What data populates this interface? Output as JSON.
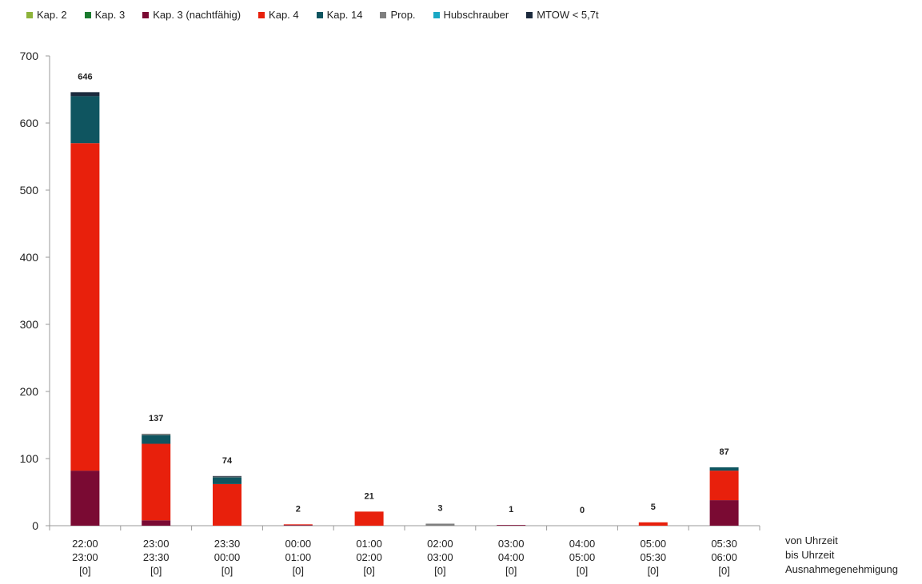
{
  "chart_data": {
    "type": "bar",
    "stacked": true,
    "title": "",
    "ylim": [
      0,
      700
    ],
    "yticks": [
      0,
      100,
      200,
      300,
      400,
      500,
      600,
      700
    ],
    "legend_placement": "top",
    "grid": false,
    "categories": [
      {
        "from": "22:00",
        "to": "23:00",
        "exception": "[0]"
      },
      {
        "from": "23:00",
        "to": "23:30",
        "exception": "[0]"
      },
      {
        "from": "23:30",
        "to": "00:00",
        "exception": "[0]"
      },
      {
        "from": "00:00",
        "to": "01:00",
        "exception": "[0]"
      },
      {
        "from": "01:00",
        "to": "02:00",
        "exception": "[0]"
      },
      {
        "from": "02:00",
        "to": "03:00",
        "exception": "[0]"
      },
      {
        "from": "03:00",
        "to": "04:00",
        "exception": "[0]"
      },
      {
        "from": "04:00",
        "to": "05:00",
        "exception": "[0]"
      },
      {
        "from": "05:00",
        "to": "05:30",
        "exception": "[0]"
      },
      {
        "from": "05:30",
        "to": "06:00",
        "exception": "[0]"
      }
    ],
    "totals": [
      "646",
      "137",
      "74",
      "2",
      "21",
      "3",
      "1",
      "0",
      "5",
      "87"
    ],
    "series": [
      {
        "name": "Kap. 2",
        "color": "#8db33a",
        "values": [
          0,
          0,
          0,
          0,
          0,
          0,
          0,
          0,
          0,
          0
        ]
      },
      {
        "name": "Kap. 3",
        "color": "#1a7a2e",
        "values": [
          0,
          0,
          0,
          0,
          0,
          0,
          0,
          0,
          0,
          0
        ]
      },
      {
        "name": "Kap. 3 (nachtfähig)",
        "color": "#7a0a33",
        "values": [
          82,
          8,
          0,
          1,
          0,
          0,
          1,
          0,
          0,
          38
        ]
      },
      {
        "name": "Kap. 4",
        "color": "#e8200c",
        "values": [
          488,
          114,
          62,
          1,
          21,
          0,
          0,
          0,
          5,
          44
        ]
      },
      {
        "name": "Kap. 14",
        "color": "#0f5560",
        "values": [
          70,
          13,
          10,
          0,
          0,
          0,
          0,
          0,
          0,
          5
        ]
      },
      {
        "name": "Prop.",
        "color": "#7f7f7f",
        "values": [
          0,
          2,
          1,
          0,
          0,
          3,
          0,
          0,
          0,
          0
        ]
      },
      {
        "name": "Hubschrauber",
        "color": "#1aa8c4",
        "values": [
          0,
          0,
          0,
          0,
          0,
          0,
          0,
          0,
          0,
          0
        ]
      },
      {
        "name": "MTOW < 5,7t",
        "color": "#1c2a3d",
        "values": [
          6,
          0,
          1,
          0,
          0,
          0,
          0,
          0,
          0,
          0
        ]
      }
    ],
    "xaxis_caption": [
      "von Uhrzeit",
      "bis Uhrzeit",
      "Ausnahmegenehmigung"
    ]
  }
}
